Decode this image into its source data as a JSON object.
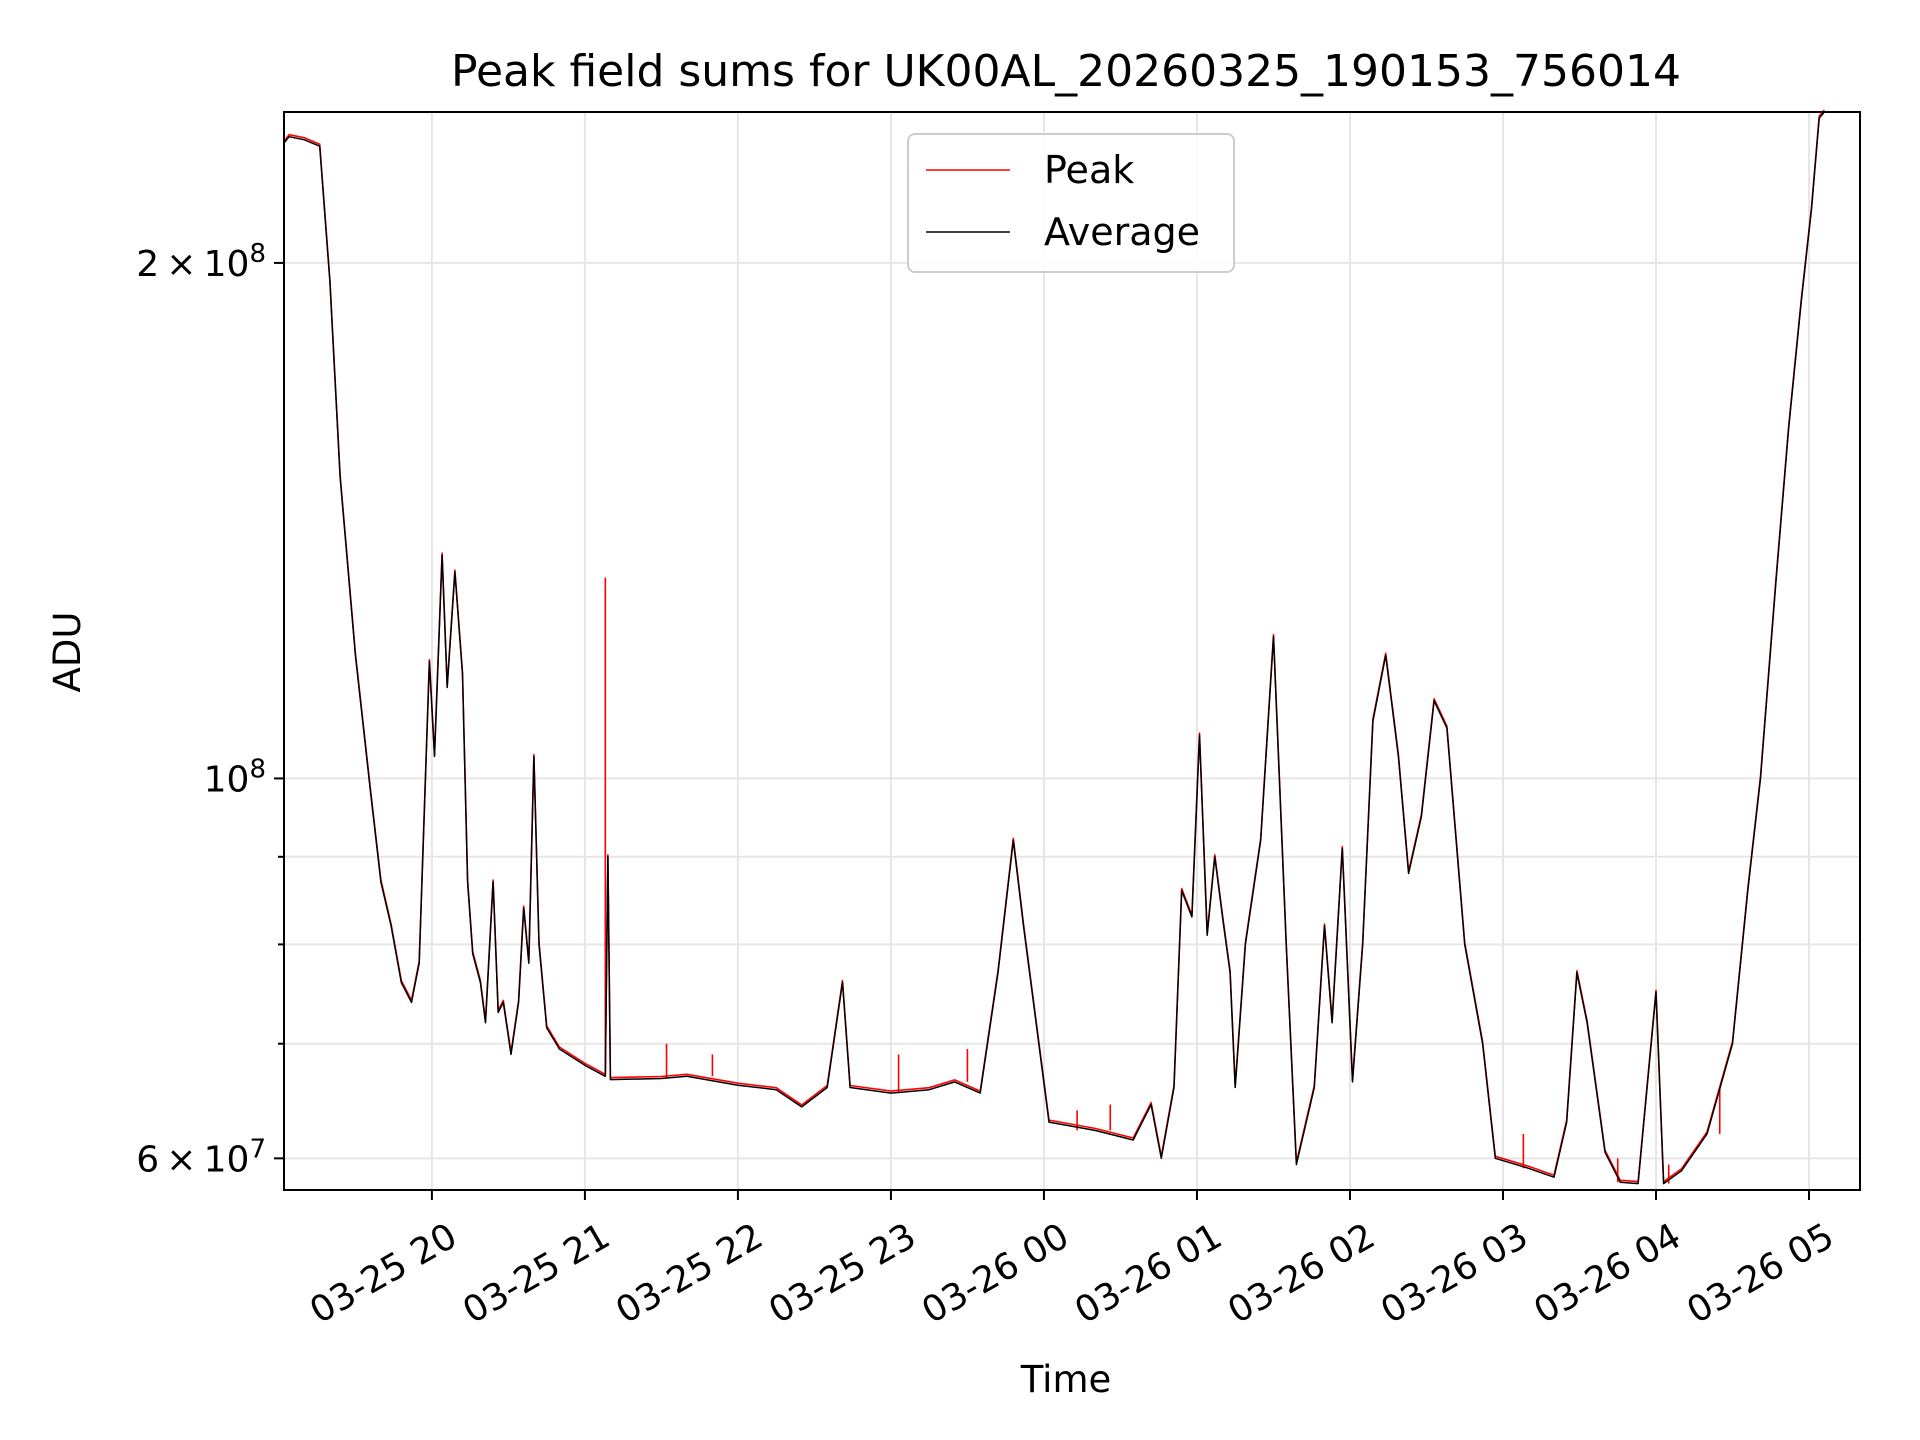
{
  "chart_data": {
    "type": "line",
    "title": "Peak field sums for UK00AL_20260325_190153_756014",
    "xlabel": "Time",
    "ylabel": "ADU",
    "yscale": "log",
    "xlim": [
      "2026-03-25 19:02",
      "2026-03-26 05:20"
    ],
    "ylim": [
      57500000,
      245000000
    ],
    "grid": true,
    "legend_position": "upper center",
    "x_tick_labels": [
      "03-25 20",
      "03-25 21",
      "03-25 22",
      "03-25 23",
      "03-26 00",
      "03-26 01",
      "03-26 02",
      "03-26 03",
      "03-26 04",
      "03-26 05"
    ],
    "x_ticks": [
      "2026-03-25 20:00",
      "2026-03-25 21:00",
      "2026-03-25 22:00",
      "2026-03-25 23:00",
      "2026-03-26 00:00",
      "2026-03-26 01:00",
      "2026-03-26 02:00",
      "2026-03-26 03:00",
      "2026-03-26 04:00",
      "2026-03-26 05:00"
    ],
    "y_ticks": [
      {
        "value": 60000000,
        "label": "6 × 10⁷",
        "mant": "6 × 10",
        "exp": "7"
      },
      {
        "value": 100000000,
        "label": "10⁸",
        "mant": "10",
        "exp": "8"
      },
      {
        "value": 200000000,
        "label": "2 × 10⁸",
        "mant": "2 × 10",
        "exp": "8"
      }
    ],
    "y_minor_ticks": [
      70000000,
      80000000,
      90000000
    ],
    "series": [
      {
        "name": "Peak",
        "color": "#ff0000"
      },
      {
        "name": "Average",
        "color": "#000000"
      }
    ],
    "average_points": [
      [
        "2026-03-25 19:02",
        235000000
      ],
      [
        "2026-03-25 19:04",
        237000000
      ],
      [
        "2026-03-25 19:10",
        236000000
      ],
      [
        "2026-03-25 19:16",
        234000000
      ],
      [
        "2026-03-25 19:20",
        195000000
      ],
      [
        "2026-03-25 19:24",
        150000000
      ],
      [
        "2026-03-25 19:30",
        118000000
      ],
      [
        "2026-03-25 19:36",
        98000000
      ],
      [
        "2026-03-25 19:40",
        87000000
      ],
      [
        "2026-03-25 19:44",
        82000000
      ],
      [
        "2026-03-25 19:48",
        76000000
      ],
      [
        "2026-03-25 19:52",
        74000000
      ],
      [
        "2026-03-25 19:55",
        78000000
      ],
      [
        "2026-03-25 19:59",
        117000000
      ],
      [
        "2026-03-25 20:01",
        103000000
      ],
      [
        "2026-03-25 20:04",
        135000000
      ],
      [
        "2026-03-25 20:06",
        113000000
      ],
      [
        "2026-03-25 20:09",
        132000000
      ],
      [
        "2026-03-25 20:12",
        115000000
      ],
      [
        "2026-03-25 20:14",
        87000000
      ],
      [
        "2026-03-25 20:16",
        79000000
      ],
      [
        "2026-03-25 20:19",
        76000000
      ],
      [
        "2026-03-25 20:21",
        72000000
      ],
      [
        "2026-03-25 20:24",
        87000000
      ],
      [
        "2026-03-25 20:26",
        73000000
      ],
      [
        "2026-03-25 20:28",
        74000000
      ],
      [
        "2026-03-25 20:31",
        69000000
      ],
      [
        "2026-03-25 20:34",
        74000000
      ],
      [
        "2026-03-25 20:36",
        84000000
      ],
      [
        "2026-03-25 20:38",
        78000000
      ],
      [
        "2026-03-25 20:40",
        103000000
      ],
      [
        "2026-03-25 20:42",
        80000000
      ],
      [
        "2026-03-25 20:45",
        71500000
      ],
      [
        "2026-03-25 20:50",
        69500000
      ],
      [
        "2026-03-25 21:00",
        68000000
      ],
      [
        "2026-03-25 21:08",
        67000000
      ],
      [
        "2026-03-25 21:09",
        90000000
      ],
      [
        "2026-03-25 21:10",
        66700000
      ],
      [
        "2026-03-25 21:30",
        66800000
      ],
      [
        "2026-03-25 21:40",
        67000000
      ],
      [
        "2026-03-25 22:00",
        66200000
      ],
      [
        "2026-03-25 22:15",
        65800000
      ],
      [
        "2026-03-25 22:25",
        64300000
      ],
      [
        "2026-03-25 22:35",
        66000000
      ],
      [
        "2026-03-25 22:41",
        76000000
      ],
      [
        "2026-03-25 22:44",
        66000000
      ],
      [
        "2026-03-25 23:00",
        65500000
      ],
      [
        "2026-03-25 23:15",
        65800000
      ],
      [
        "2026-03-25 23:25",
        66500000
      ],
      [
        "2026-03-25 23:35",
        65500000
      ],
      [
        "2026-03-25 23:42",
        77000000
      ],
      [
        "2026-03-25 23:48",
        92000000
      ],
      [
        "2026-03-25 23:52",
        82000000
      ],
      [
        "2026-03-26 00:02",
        63000000
      ],
      [
        "2026-03-26 00:20",
        62300000
      ],
      [
        "2026-03-26 00:35",
        61500000
      ],
      [
        "2026-03-26 00:42",
        64500000
      ],
      [
        "2026-03-26 00:46",
        60000000
      ],
      [
        "2026-03-26 00:51",
        66000000
      ],
      [
        "2026-03-26 00:54",
        86000000
      ],
      [
        "2026-03-26 00:58",
        83000000
      ],
      [
        "2026-03-26 01:01",
        106000000
      ],
      [
        "2026-03-26 01:04",
        81000000
      ],
      [
        "2026-03-26 01:07",
        90000000
      ],
      [
        "2026-03-26 01:10",
        83000000
      ],
      [
        "2026-03-26 01:13",
        77000000
      ],
      [
        "2026-03-26 01:15",
        66000000
      ],
      [
        "2026-03-26 01:19",
        80000000
      ],
      [
        "2026-03-26 01:25",
        92000000
      ],
      [
        "2026-03-26 01:30",
        121000000
      ],
      [
        "2026-03-26 01:35",
        80000000
      ],
      [
        "2026-03-26 01:39",
        59500000
      ],
      [
        "2026-03-26 01:46",
        66000000
      ],
      [
        "2026-03-26 01:50",
        82000000
      ],
      [
        "2026-03-26 01:53",
        72000000
      ],
      [
        "2026-03-26 01:57",
        91000000
      ],
      [
        "2026-03-26 02:01",
        66500000
      ],
      [
        "2026-03-26 02:05",
        80000000
      ],
      [
        "2026-03-26 02:09",
        108000000
      ],
      [
        "2026-03-26 02:14",
        118000000
      ],
      [
        "2026-03-26 02:19",
        103000000
      ],
      [
        "2026-03-26 02:23",
        88000000
      ],
      [
        "2026-03-26 02:28",
        95000000
      ],
      [
        "2026-03-26 02:33",
        111000000
      ],
      [
        "2026-03-26 02:38",
        107000000
      ],
      [
        "2026-03-26 02:45",
        80000000
      ],
      [
        "2026-03-26 02:52",
        70000000
      ],
      [
        "2026-03-26 02:57",
        60000000
      ],
      [
        "2026-03-26 03:10",
        59200000
      ],
      [
        "2026-03-26 03:20",
        58500000
      ],
      [
        "2026-03-26 03:25",
        63000000
      ],
      [
        "2026-03-26 03:29",
        77000000
      ],
      [
        "2026-03-26 03:33",
        72000000
      ],
      [
        "2026-03-26 03:40",
        60500000
      ],
      [
        "2026-03-26 03:46",
        58100000
      ],
      [
        "2026-03-26 03:53",
        58000000
      ],
      [
        "2026-03-26 04:00",
        75000000
      ],
      [
        "2026-03-26 04:03",
        58000000
      ],
      [
        "2026-03-26 04:10",
        59000000
      ],
      [
        "2026-03-26 04:20",
        62000000
      ],
      [
        "2026-03-26 04:30",
        70000000
      ],
      [
        "2026-03-26 04:36",
        86000000
      ],
      [
        "2026-03-26 04:41",
        100000000
      ],
      [
        "2026-03-26 04:47",
        130000000
      ],
      [
        "2026-03-26 04:52",
        160000000
      ],
      [
        "2026-03-26 04:57",
        190000000
      ],
      [
        "2026-03-26 05:01",
        215000000
      ],
      [
        "2026-03-26 05:04",
        243000000
      ],
      [
        "2026-03-26 05:06",
        245000000
      ]
    ],
    "peak_spikes": [
      [
        "2026-03-25 21:08",
        131000000
      ],
      [
        "2026-03-25 21:32",
        70000000
      ],
      [
        "2026-03-25 21:50",
        69000000
      ],
      [
        "2026-03-25 23:03",
        69000000
      ],
      [
        "2026-03-25 23:30",
        69500000
      ],
      [
        "2026-03-26 00:13",
        64000000
      ],
      [
        "2026-03-26 00:26",
        64500000
      ],
      [
        "2026-03-26 03:08",
        62000000
      ],
      [
        "2026-03-26 03:45",
        60000000
      ],
      [
        "2026-03-26 04:05",
        59500000
      ],
      [
        "2026-03-26 04:25",
        66000000
      ]
    ]
  }
}
